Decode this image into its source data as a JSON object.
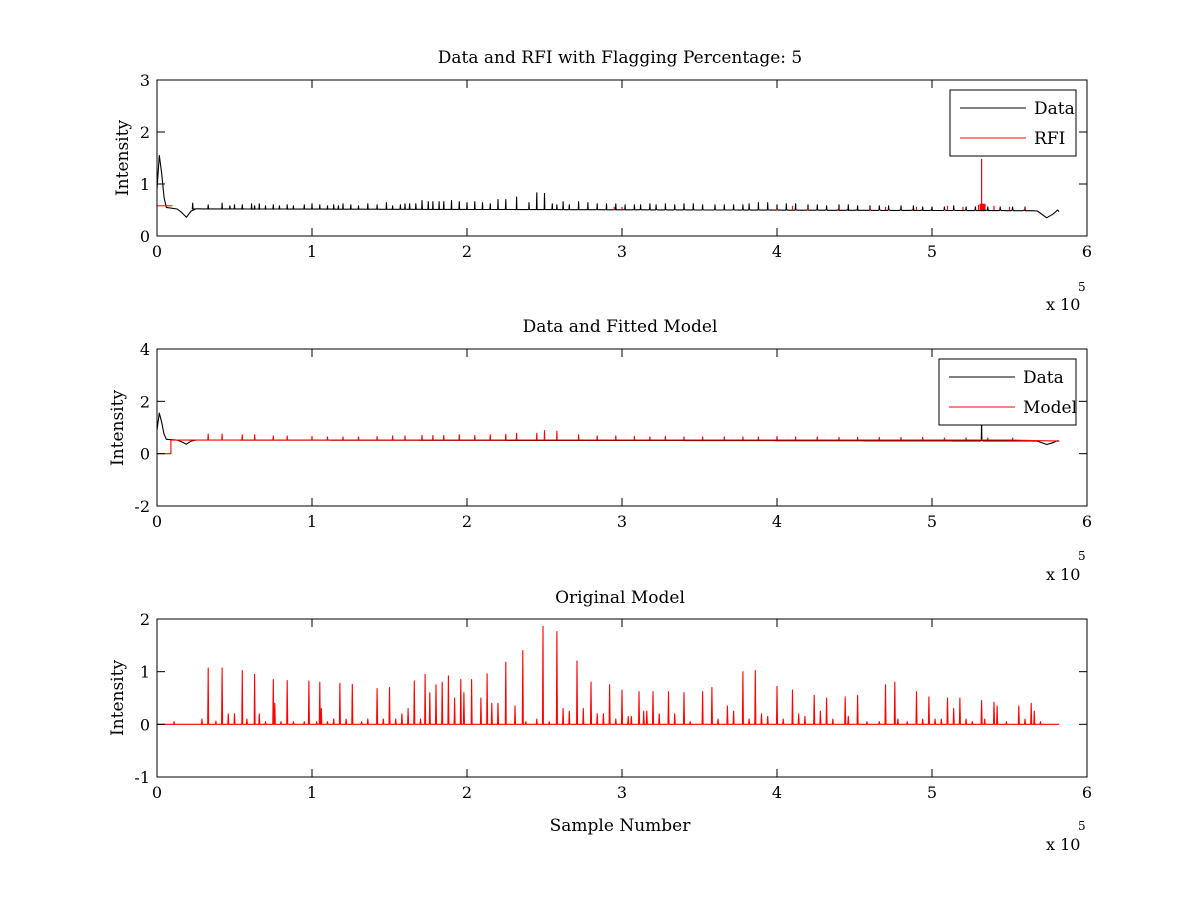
{
  "figure": {
    "panels_count": 3
  },
  "chart_data": [
    {
      "type": "line",
      "title": "Data and RFI with Flagging Percentage: 5",
      "xlabel": "",
      "ylabel": "Intensity",
      "xlim": [
        0,
        600000
      ],
      "ylim": [
        0,
        3
      ],
      "xticks": [
        0,
        1,
        2,
        3,
        4,
        5,
        6
      ],
      "yticks": [
        0,
        1,
        2,
        3
      ],
      "x_multiplier_label": "x 10",
      "x_multiplier_exponent": "5",
      "grid": false,
      "legend_position": "top-right",
      "series": [
        {
          "name": "Data",
          "color": "#000000",
          "baseline": 0.52,
          "initial_peak": 1.55,
          "dips": [
            {
              "x": 19000,
              "y": 0.36
            },
            {
              "x": 574000,
              "y": 0.35
            }
          ],
          "end_value": 0.5,
          "spike_positions": [
            23000,
            33000,
            42000,
            47000,
            50000,
            55000,
            61000,
            63000,
            66000,
            70000,
            75000,
            79000,
            84000,
            88000,
            95000,
            100000,
            105000,
            110000,
            114000,
            117000,
            120000,
            125000,
            130000,
            136000,
            142000,
            148000,
            152000,
            157000,
            160000,
            163000,
            167000,
            171000,
            175000,
            178000,
            182000,
            185000,
            190000,
            195000,
            200000,
            205000,
            210000,
            215000,
            220000,
            225000,
            232000,
            240000,
            245000,
            250000,
            255000,
            258000,
            262000,
            266000,
            272000,
            278000,
            284000,
            290000,
            296000,
            302000,
            308000,
            312000,
            318000,
            322000,
            328000,
            334000,
            340000,
            346000,
            352000,
            360000,
            366000,
            372000,
            378000,
            382000,
            388000,
            394000,
            400000,
            406000,
            412000,
            420000,
            426000,
            432000,
            440000,
            446000,
            452000,
            460000,
            466000,
            472000,
            480000,
            488000,
            494000,
            500000,
            508000,
            514000,
            522000,
            528000,
            536000,
            544000,
            552000,
            560000
          ],
          "spike_heights": [
            0.63,
            0.6,
            0.63,
            0.58,
            0.6,
            0.6,
            0.62,
            0.58,
            0.62,
            0.58,
            0.6,
            0.58,
            0.6,
            0.58,
            0.6,
            0.62,
            0.6,
            0.58,
            0.6,
            0.58,
            0.62,
            0.6,
            0.58,
            0.62,
            0.6,
            0.64,
            0.58,
            0.6,
            0.62,
            0.62,
            0.62,
            0.68,
            0.66,
            0.66,
            0.66,
            0.66,
            0.68,
            0.66,
            0.64,
            0.66,
            0.64,
            0.62,
            0.7,
            0.7,
            0.75,
            0.64,
            0.83,
            0.82,
            0.62,
            0.6,
            0.66,
            0.6,
            0.66,
            0.64,
            0.62,
            0.62,
            0.62,
            0.6,
            0.6,
            0.6,
            0.62,
            0.6,
            0.62,
            0.6,
            0.62,
            0.62,
            0.6,
            0.6,
            0.6,
            0.6,
            0.6,
            0.62,
            0.64,
            0.64,
            0.6,
            0.62,
            0.62,
            0.6,
            0.6,
            0.58,
            0.6,
            0.6,
            0.58,
            0.58,
            0.58,
            0.58,
            0.58,
            0.58,
            0.56,
            0.56,
            0.56,
            0.58,
            0.56,
            0.56,
            0.56,
            0.56,
            0.56,
            0.56
          ]
        },
        {
          "name": "RFI",
          "color": "#ff0000",
          "start_segment": {
            "x_end": 10000,
            "y": 0.58
          },
          "flag_positions": [
            295000,
            300000,
            400000,
            410000,
            420000,
            440000,
            460000,
            470000,
            490000,
            510000,
            520000,
            530000,
            540000,
            550000,
            560000
          ],
          "flag_heights": [
            0.56,
            0.56,
            0.56,
            0.58,
            0.56,
            0.56,
            0.56,
            0.56,
            0.56,
            0.58,
            0.56,
            0.6,
            0.58,
            0.56,
            0.56
          ],
          "big_spike": {
            "x": 532000,
            "y": 1.48
          }
        }
      ]
    },
    {
      "type": "line",
      "title": "Data and Fitted Model",
      "xlabel": "",
      "ylabel": "Intensity",
      "xlim": [
        0,
        600000
      ],
      "ylim": [
        -2,
        4
      ],
      "xticks": [
        0,
        1,
        2,
        3,
        4,
        5,
        6
      ],
      "yticks": [
        -2,
        0,
        2,
        4
      ],
      "x_multiplier_label": "x 10",
      "x_multiplier_exponent": "5",
      "grid": false,
      "legend_position": "top-right",
      "series": [
        {
          "name": "Data",
          "color": "#000000",
          "baseline": 0.52,
          "initial_peak": 1.55,
          "dips": [
            {
              "x": 19000,
              "y": 0.36
            },
            {
              "x": 574000,
              "y": 0.35
            }
          ],
          "end_value": 0.5,
          "extra_spike": {
            "x": 532000,
            "y": 1.3
          }
        },
        {
          "name": "Model",
          "color": "#ff0000",
          "start_step": {
            "x_end": 9000,
            "y": 0
          },
          "baseline": 0.52,
          "spike_positions": [
            33000,
            42000,
            55000,
            63000,
            75000,
            84000,
            100000,
            110000,
            120000,
            130000,
            142000,
            152000,
            160000,
            171000,
            178000,
            185000,
            195000,
            205000,
            215000,
            225000,
            232000,
            245000,
            250000,
            258000,
            272000,
            284000,
            296000,
            308000,
            318000,
            328000,
            340000,
            352000,
            366000,
            378000,
            388000,
            400000,
            412000,
            426000,
            440000,
            452000,
            466000,
            480000,
            494000,
            508000,
            522000,
            536000,
            552000
          ],
          "spike_heights": [
            0.75,
            0.75,
            0.72,
            0.72,
            0.68,
            0.68,
            0.66,
            0.64,
            0.64,
            0.64,
            0.66,
            0.68,
            0.68,
            0.7,
            0.7,
            0.7,
            0.72,
            0.7,
            0.72,
            0.74,
            0.78,
            0.78,
            0.88,
            0.86,
            0.72,
            0.68,
            0.68,
            0.66,
            0.64,
            0.66,
            0.64,
            0.64,
            0.64,
            0.64,
            0.64,
            0.66,
            0.64,
            0.64,
            0.62,
            0.62,
            0.62,
            0.62,
            0.62,
            0.6,
            0.6,
            0.6,
            0.6
          ]
        }
      ]
    },
    {
      "type": "line",
      "title": "Original Model",
      "xlabel": "Sample Number",
      "ylabel": "Intensity",
      "xlim": [
        0,
        600000
      ],
      "ylim": [
        -1,
        2
      ],
      "xticks": [
        0,
        1,
        2,
        3,
        4,
        5,
        6
      ],
      "yticks": [
        -1,
        0,
        1,
        2
      ],
      "x_multiplier_label": "x 10",
      "x_multiplier_exponent": "5",
      "grid": false,
      "series": [
        {
          "color": "#ff0000",
          "baseline": 0,
          "x_start": 0,
          "x_end": 582000,
          "peaks": [
            [
              11000,
              0.05
            ],
            [
              29000,
              0.1
            ],
            [
              33000,
              1.07
            ],
            [
              38000,
              0.06
            ],
            [
              42000,
              1.07
            ],
            [
              46000,
              0.2
            ],
            [
              50000,
              0.2
            ],
            [
              55000,
              1.02
            ],
            [
              58000,
              0.1
            ],
            [
              63000,
              0.95
            ],
            [
              66000,
              0.2
            ],
            [
              70000,
              0.05
            ],
            [
              75000,
              0.85
            ],
            [
              76000,
              0.4
            ],
            [
              80000,
              0.05
            ],
            [
              84000,
              0.83
            ],
            [
              88000,
              0.05
            ],
            [
              95000,
              0.05
            ],
            [
              98000,
              0.82
            ],
            [
              103000,
              0.05
            ],
            [
              105000,
              0.8
            ],
            [
              106000,
              0.3
            ],
            [
              110000,
              0.05
            ],
            [
              114000,
              0.1
            ],
            [
              118000,
              0.78
            ],
            [
              122000,
              0.1
            ],
            [
              126000,
              0.76
            ],
            [
              132000,
              0.05
            ],
            [
              136000,
              0.1
            ],
            [
              142000,
              0.68
            ],
            [
              146000,
              0.1
            ],
            [
              150000,
              0.7
            ],
            [
              154000,
              0.1
            ],
            [
              158000,
              0.2
            ],
            [
              162000,
              0.3
            ],
            [
              166000,
              0.82
            ],
            [
              170000,
              0.1
            ],
            [
              173000,
              0.95
            ],
            [
              176000,
              0.6
            ],
            [
              180000,
              0.75
            ],
            [
              184000,
              0.8
            ],
            [
              188000,
              0.92
            ],
            [
              192000,
              0.5
            ],
            [
              196000,
              0.85
            ],
            [
              198000,
              0.6
            ],
            [
              203000,
              0.85
            ],
            [
              209000,
              0.5
            ],
            [
              213000,
              0.96
            ],
            [
              216000,
              0.4
            ],
            [
              220000,
              0.4
            ],
            [
              225000,
              1.18
            ],
            [
              231000,
              0.35
            ],
            [
              236000,
              1.4
            ],
            [
              238000,
              0.05
            ],
            [
              245000,
              0.1
            ],
            [
              249000,
              1.86
            ],
            [
              253000,
              0.05
            ],
            [
              258000,
              1.76
            ],
            [
              262000,
              0.3
            ],
            [
              266000,
              0.25
            ],
            [
              271000,
              1.2
            ],
            [
              275000,
              0.3
            ],
            [
              280000,
              0.8
            ],
            [
              284000,
              0.2
            ],
            [
              288000,
              0.2
            ],
            [
              292000,
              0.75
            ],
            [
              296000,
              0.1
            ],
            [
              300000,
              0.65
            ],
            [
              304000,
              0.15
            ],
            [
              306000,
              0.15
            ],
            [
              311000,
              0.62
            ],
            [
              314000,
              0.25
            ],
            [
              316000,
              0.25
            ],
            [
              320000,
              0.62
            ],
            [
              324000,
              0.2
            ],
            [
              330000,
              0.62
            ],
            [
              334000,
              0.2
            ],
            [
              340000,
              0.6
            ],
            [
              344000,
              0.05
            ],
            [
              352000,
              0.62
            ],
            [
              358000,
              0.7
            ],
            [
              362000,
              0.1
            ],
            [
              368000,
              0.35
            ],
            [
              372000,
              0.25
            ],
            [
              378000,
              1.0
            ],
            [
              382000,
              0.1
            ],
            [
              386000,
              1.02
            ],
            [
              390000,
              0.2
            ],
            [
              394000,
              0.15
            ],
            [
              400000,
              0.72
            ],
            [
              404000,
              0.1
            ],
            [
              410000,
              0.65
            ],
            [
              414000,
              0.2
            ],
            [
              418000,
              0.15
            ],
            [
              424000,
              0.55
            ],
            [
              428000,
              0.25
            ],
            [
              432000,
              0.5
            ],
            [
              436000,
              0.1
            ],
            [
              444000,
              0.52
            ],
            [
              446000,
              0.15
            ],
            [
              452000,
              0.55
            ],
            [
              458000,
              0.05
            ],
            [
              466000,
              0.05
            ],
            [
              470000,
              0.75
            ],
            [
              476000,
              0.8
            ],
            [
              478000,
              0.1
            ],
            [
              484000,
              0.05
            ],
            [
              490000,
              0.62
            ],
            [
              494000,
              0.1
            ],
            [
              498000,
              0.52
            ],
            [
              502000,
              0.1
            ],
            [
              506000,
              0.1
            ],
            [
              510000,
              0.5
            ],
            [
              514000,
              0.3
            ],
            [
              518000,
              0.5
            ],
            [
              522000,
              0.1
            ],
            [
              526000,
              0.05
            ],
            [
              532000,
              0.45
            ],
            [
              534000,
              0.1
            ],
            [
              540000,
              0.42
            ],
            [
              542000,
              0.35
            ],
            [
              548000,
              0.05
            ],
            [
              556000,
              0.35
            ],
            [
              560000,
              0.1
            ],
            [
              564000,
              0.4
            ],
            [
              566000,
              0.25
            ],
            [
              570000,
              0.05
            ]
          ]
        }
      ]
    }
  ]
}
